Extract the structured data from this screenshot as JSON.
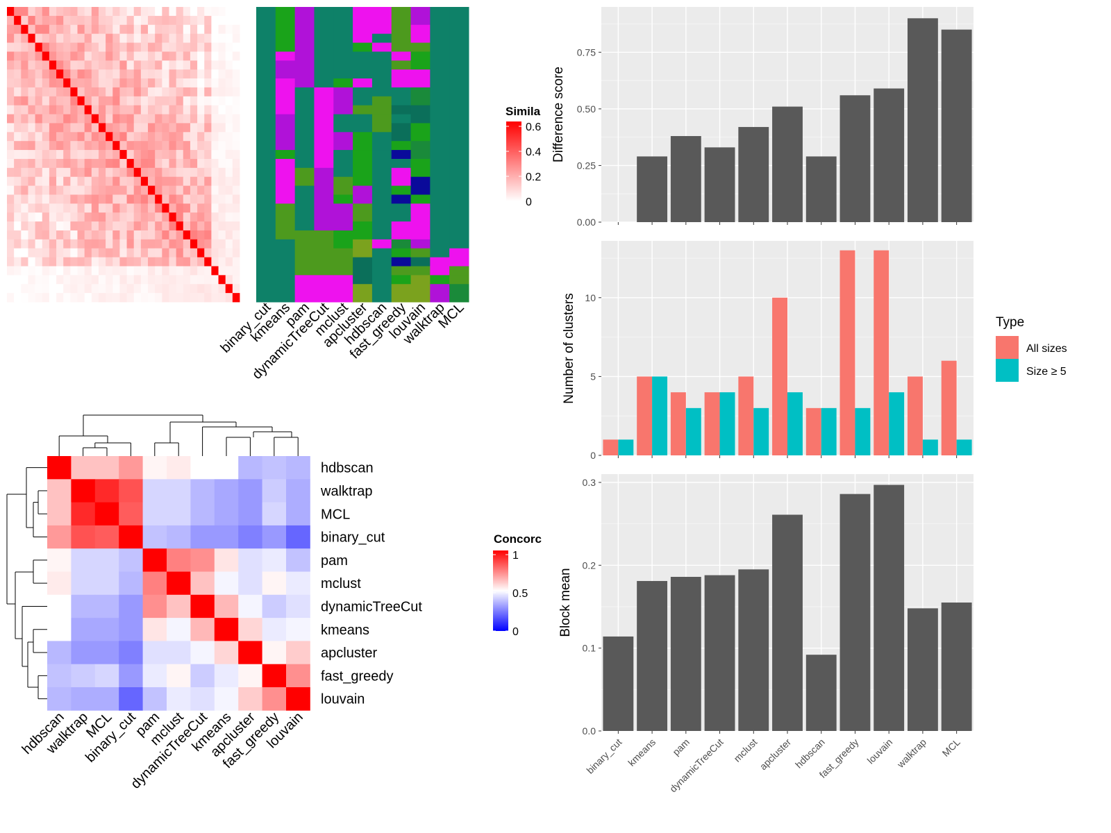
{
  "chart_data": [
    {
      "id": "similarity_heatmap",
      "type": "heatmap",
      "legend_title": "Simila",
      "legend_ticks": [
        "0.6",
        "0.4",
        "0.2",
        "0"
      ],
      "color_low": "#ffffff",
      "color_high": "#ff0000",
      "n": 33,
      "diagonal_value": 0.6,
      "last_cell_value": 0.6
    },
    {
      "id": "cluster_assignment_grid",
      "type": "heatmap",
      "columns": [
        "binary_cut",
        "kmeans",
        "pam",
        "dynamicTreeCut",
        "mclust",
        "apcluster",
        "hdbscan",
        "fast_greedy",
        "louvain",
        "walktrap",
        "MCL"
      ],
      "n_rows": 33,
      "palette": [
        "#0e8168",
        "#1aa31a",
        "#b012d8",
        "#ee12ee",
        "#4d9a1e",
        "#0b6f5a",
        "#7ba21e",
        "#0a0a9a",
        "#1a8a3a",
        "#8a5fd8"
      ]
    },
    {
      "id": "concordance_heatmap",
      "type": "heatmap",
      "legend_title": "Concorc",
      "legend_ticks": [
        "1",
        "0.5",
        "0"
      ],
      "rows": [
        "hdbscan",
        "walktrap",
        "MCL",
        "binary_cut",
        "pam",
        "mclust",
        "dynamicTreeCut",
        "kmeans",
        "apcluster",
        "fast_greedy",
        "louvain"
      ],
      "columns": [
        "hdbscan",
        "walktrap",
        "MCL",
        "binary_cut",
        "pam",
        "mclust",
        "dynamicTreeCut",
        "kmeans",
        "apcluster",
        "fast_greedy",
        "louvain"
      ],
      "values": [
        [
          1.0,
          0.62,
          0.62,
          0.7,
          0.52,
          0.54,
          0.5,
          0.5,
          0.36,
          0.38,
          0.36
        ],
        [
          0.62,
          1.0,
          0.92,
          0.84,
          0.42,
          0.42,
          0.36,
          0.33,
          0.3,
          0.4,
          0.34
        ],
        [
          0.62,
          0.92,
          1.0,
          0.82,
          0.42,
          0.42,
          0.36,
          0.33,
          0.3,
          0.42,
          0.34
        ],
        [
          0.7,
          0.84,
          0.82,
          1.0,
          0.38,
          0.36,
          0.3,
          0.3,
          0.25,
          0.3,
          0.2
        ],
        [
          0.52,
          0.42,
          0.42,
          0.38,
          1.0,
          0.75,
          0.72,
          0.55,
          0.44,
          0.46,
          0.38
        ],
        [
          0.54,
          0.42,
          0.42,
          0.36,
          0.75,
          1.0,
          0.62,
          0.48,
          0.44,
          0.52,
          0.46
        ],
        [
          0.5,
          0.36,
          0.36,
          0.3,
          0.72,
          0.62,
          1.0,
          0.64,
          0.48,
          0.4,
          0.44
        ],
        [
          0.5,
          0.33,
          0.33,
          0.3,
          0.55,
          0.48,
          0.64,
          1.0,
          0.58,
          0.46,
          0.48
        ],
        [
          0.36,
          0.3,
          0.3,
          0.25,
          0.44,
          0.44,
          0.48,
          0.58,
          1.0,
          0.52,
          0.6
        ],
        [
          0.38,
          0.4,
          0.42,
          0.3,
          0.46,
          0.52,
          0.4,
          0.46,
          0.52,
          1.0,
          0.72
        ],
        [
          0.36,
          0.34,
          0.34,
          0.2,
          0.38,
          0.46,
          0.44,
          0.48,
          0.6,
          0.72,
          1.0
        ]
      ]
    },
    {
      "id": "difference_score",
      "type": "bar",
      "ylabel": "Difference score",
      "categories": [
        "binary_cut",
        "kmeans",
        "pam",
        "dynamicTreeCut",
        "mclust",
        "apcluster",
        "hdbscan",
        "fast_greedy",
        "louvain",
        "walktrap",
        "MCL"
      ],
      "values": [
        0,
        0.29,
        0.38,
        0.33,
        0.42,
        0.51,
        0.29,
        0.56,
        0.59,
        0.9,
        0.85
      ],
      "ylim": [
        0,
        0.95
      ],
      "yticks": [
        "0.00",
        "0.25",
        "0.50",
        "0.75"
      ],
      "bar_color": "#595959"
    },
    {
      "id": "number_of_clusters",
      "type": "bar",
      "ylabel": "Number of clusters",
      "categories": [
        "binary_cut",
        "kmeans",
        "pam",
        "dynamicTreeCut",
        "mclust",
        "apcluster",
        "hdbscan",
        "fast_greedy",
        "louvain",
        "walktrap",
        "MCL"
      ],
      "series": [
        {
          "name": "All sizes",
          "color": "#f8766d",
          "values": [
            1,
            5,
            4,
            4,
            5,
            10,
            3,
            13,
            13,
            5,
            6
          ]
        },
        {
          "name": "Size ≥ 5",
          "color": "#00bfc4",
          "values": [
            1,
            5,
            3,
            4,
            3,
            4,
            3,
            3,
            4,
            1,
            1
          ]
        }
      ],
      "ylim": [
        0,
        13.6
      ],
      "yticks": [
        "0",
        "5",
        "10"
      ],
      "legend_title": "Type",
      "legend_position": "right"
    },
    {
      "id": "block_mean",
      "type": "bar",
      "ylabel": "Block mean",
      "categories": [
        "binary_cut",
        "kmeans",
        "pam",
        "dynamicTreeCut",
        "mclust",
        "apcluster",
        "hdbscan",
        "fast_greedy",
        "louvain",
        "walktrap",
        "MCL"
      ],
      "values": [
        0.114,
        0.181,
        0.186,
        0.188,
        0.195,
        0.261,
        0.092,
        0.286,
        0.297,
        0.148,
        0.155
      ],
      "ylim": [
        0,
        0.31
      ],
      "yticks": [
        "0.0",
        "0.1",
        "0.2",
        "0.3"
      ],
      "bar_color": "#595959"
    }
  ]
}
